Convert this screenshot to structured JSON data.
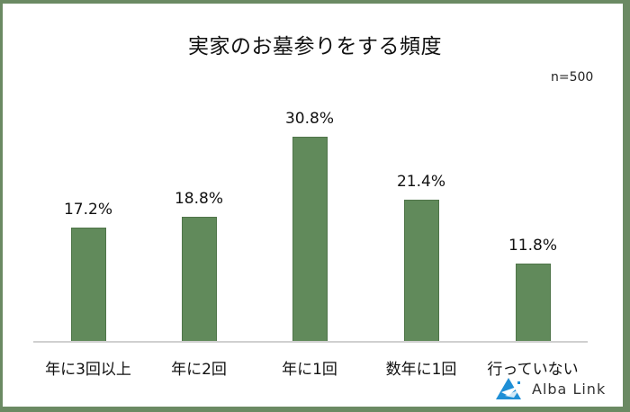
{
  "title": "実家のお墓参りをする頻度",
  "sample_size": "n=500",
  "brand": {
    "name": "Alba Link",
    "color": "#1f8fd6"
  },
  "colors": {
    "bar": "#618a5b",
    "frame": "#6b8a63"
  },
  "bars": [
    {
      "label": "年に3回以上",
      "value_text": "17.2%"
    },
    {
      "label": "年に2回",
      "value_text": "18.8%"
    },
    {
      "label": "年に1回",
      "value_text": "30.8%"
    },
    {
      "label": "数年に1回",
      "value_text": "21.4%"
    },
    {
      "label": "行っていない",
      "value_text": "11.8%"
    }
  ],
  "chart_data": {
    "type": "bar",
    "title": "実家のお墓参りをする頻度",
    "subtitle": "n=500",
    "categories": [
      "年に3回以上",
      "年に2回",
      "年に1回",
      "数年に1回",
      "行っていない"
    ],
    "values": [
      17.2,
      18.8,
      30.8,
      21.4,
      11.8
    ],
    "unit": "%",
    "xlabel": "",
    "ylabel": "",
    "grid": false,
    "legend": "none",
    "data_labels": true
  }
}
